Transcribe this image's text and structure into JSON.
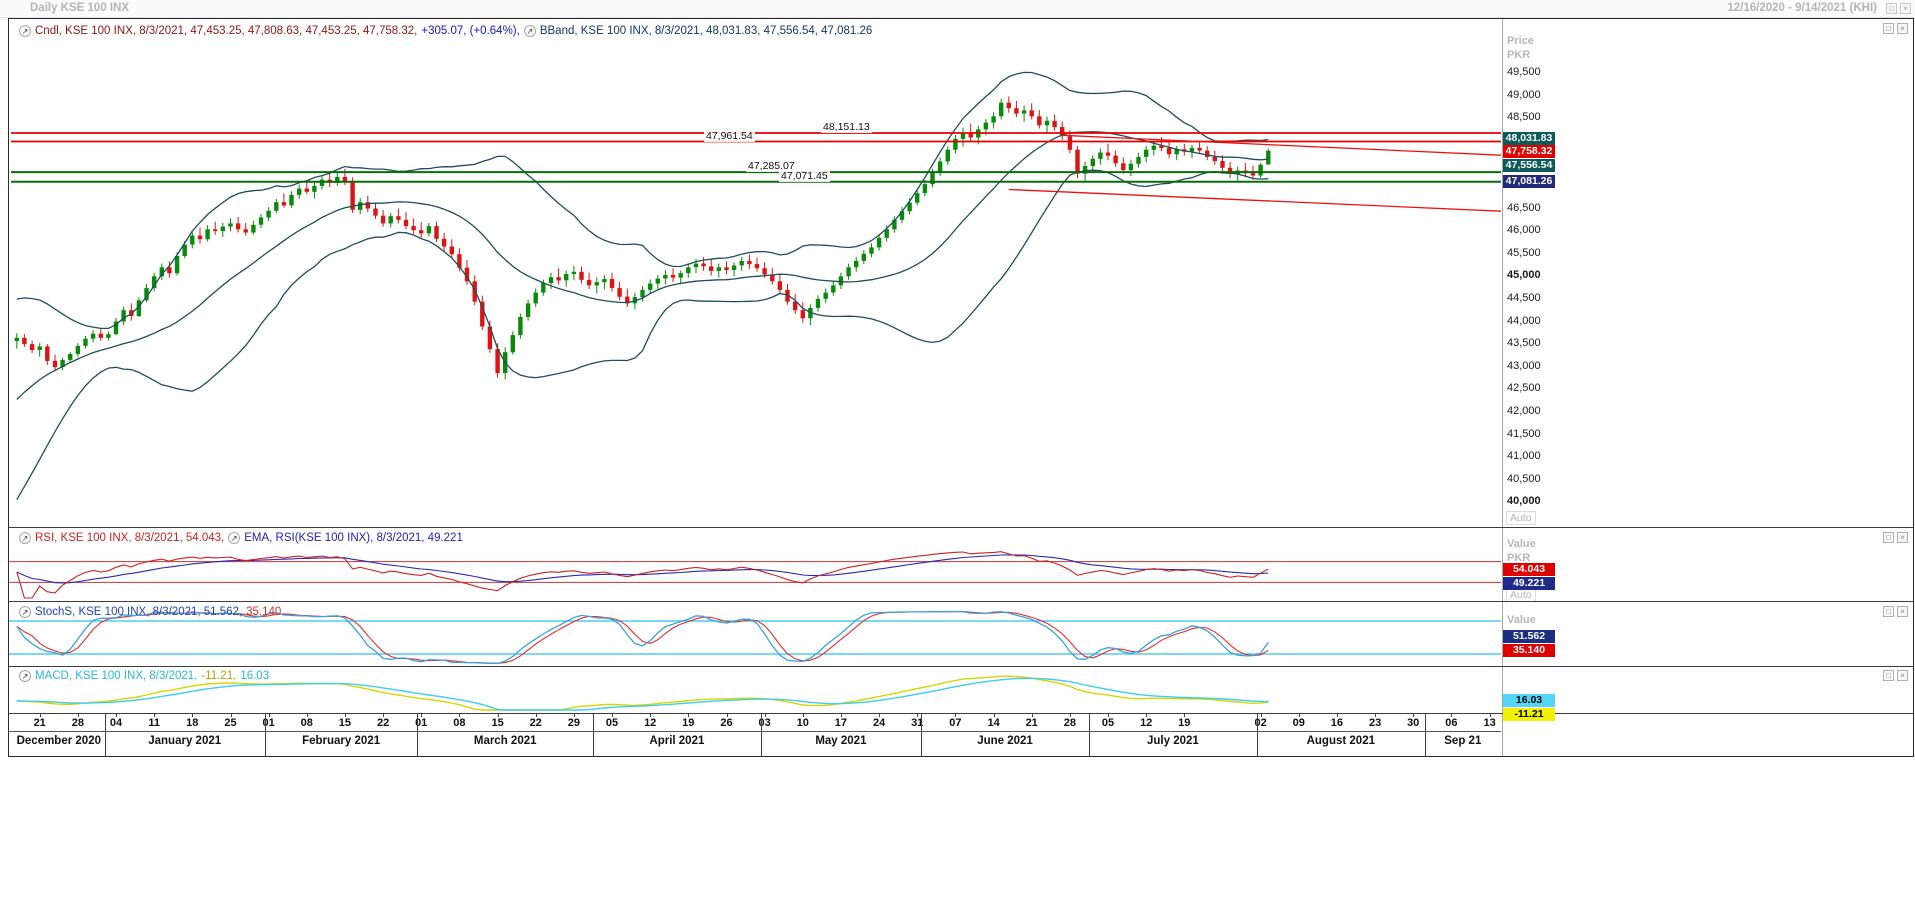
{
  "titlebar": {
    "title": "Daily KSE 100 INX",
    "date_range": "12/16/2020 - 9/14/2021 (KHI)"
  },
  "icons": {
    "legend_expand": "↗",
    "maximize": "□",
    "close": "×"
  },
  "colors": {
    "up": "#0a8a0a",
    "down": "#dc1414",
    "bband": "#1e4f5c",
    "hline_red": "#e40000",
    "hline_green": "#0b6b0b",
    "trend": "#ee1111",
    "rsi": "#cc2222",
    "rsi_ema": "#2a2ab4",
    "rsi_hline": "#cc3333",
    "stoch_k": "#3aa2dc",
    "stoch_d": "#e03030",
    "stoch_hline": "#2cc2ea",
    "macd": "#d6d600",
    "macd_signal": "#3fcdef"
  },
  "main_panel": {
    "legend_cndl": "Cndl, KSE 100 INX, 8/3/2021, 47,453.25, 47,808.63, 47,453.25, 47,758.32,",
    "legend_change": "+305.07, (+0.64%),",
    "legend_bband": "BBand, KSE 100 INX, 8/3/2021, 48,031.83, 47,556.54, 47,081.26",
    "axis_title_1": "Price",
    "axis_title_2": "PKR",
    "auto_label": "Auto",
    "y_ticks": [
      [
        "49,500",
        49500,
        0
      ],
      [
        "49,000",
        49000,
        0
      ],
      [
        "48,500",
        48500,
        0
      ],
      [
        "46,500",
        46500,
        0
      ],
      [
        "46,000",
        46000,
        0
      ],
      [
        "45,500",
        45500,
        0
      ],
      [
        "45,000",
        45000,
        1
      ],
      [
        "44,500",
        44500,
        0
      ],
      [
        "44,000",
        44000,
        0
      ],
      [
        "43,500",
        43500,
        0
      ],
      [
        "43,000",
        43000,
        0
      ],
      [
        "42,500",
        42500,
        0
      ],
      [
        "42,000",
        42000,
        0
      ],
      [
        "41,500",
        41500,
        0
      ],
      [
        "41,000",
        41000,
        0
      ],
      [
        "40,500",
        40500,
        0
      ],
      [
        "40,000",
        40000,
        1
      ]
    ],
    "badges": [
      [
        "48,031.83",
        48031.83,
        "#0d5a5a",
        "#ffffff"
      ],
      [
        "47,758.32",
        47758.32,
        "#e00000",
        "#ffffff"
      ],
      [
        "47,556.54",
        47556.54,
        "#0d5a5a",
        "#ffffff"
      ],
      [
        "47,081.26",
        47081.26,
        "#202a78",
        "#ffffff"
      ]
    ],
    "hlines": [
      [
        "48,151.13",
        48151.13,
        "red",
        812
      ],
      [
        "47,961.54",
        47961.54,
        "red",
        695
      ],
      [
        "47,285.07",
        47285.07,
        "green",
        737
      ],
      [
        "47,071.45",
        47071.45,
        "green",
        770
      ]
    ],
    "trendlines": [
      [
        137,
        48100,
        194.5,
        47660
      ],
      [
        130,
        46900,
        194.5,
        46420
      ]
    ]
  },
  "rsi_panel": {
    "legend_rsi": "RSI, KSE 100 INX, 8/3/2021, 54.043,",
    "legend_ema": "EMA, RSI(KSE 100 INX), 8/3/2021, 49.221",
    "axis_title_1": "Value",
    "axis_title_2": "PKR",
    "auto_label": "Auto",
    "hlines": [
      70,
      30
    ],
    "badges": [
      [
        "54.043",
        54.043,
        "#e00000",
        "#ffffff"
      ],
      [
        "49.221",
        49.221,
        "#202a8c",
        "#ffffff"
      ]
    ]
  },
  "stoch_panel": {
    "legend_main": "StochS, KSE 100 INX, 8/3/2021, 51.562,",
    "legend_d": "35.140",
    "axis_title_1": "Value",
    "hlines": [
      80,
      20
    ],
    "badges": [
      [
        "51.562",
        51.562,
        "#1c2f7e",
        "#ffffff"
      ],
      [
        "35.140",
        35.14,
        "#e00000",
        "#ffffff"
      ]
    ]
  },
  "macd_panel": {
    "legend_main": "MACD, KSE 100 INX, 8/3/2021,",
    "legend_macd_value": "-11.21,",
    "legend_signal_value": "16.03",
    "badges": [
      [
        "16.03",
        16.03,
        "#55d5f5",
        "#000000"
      ],
      [
        "-11.21",
        -11.21,
        "#f0f000",
        "#000000"
      ]
    ]
  },
  "xaxis": {
    "day_ticks": [
      [
        "21",
        3
      ],
      [
        "28",
        8
      ],
      [
        "04",
        13
      ],
      [
        "11",
        18
      ],
      [
        "18",
        23
      ],
      [
        "25",
        28
      ],
      [
        "01",
        33
      ],
      [
        "08",
        38
      ],
      [
        "15",
        43
      ],
      [
        "22",
        48
      ],
      [
        "01",
        53
      ],
      [
        "08",
        58
      ],
      [
        "15",
        63
      ],
      [
        "22",
        68
      ],
      [
        "29",
        73
      ],
      [
        "05",
        78
      ],
      [
        "12",
        83
      ],
      [
        "19",
        88
      ],
      [
        "26",
        93
      ],
      [
        "03",
        98
      ],
      [
        "10",
        103
      ],
      [
        "17",
        108
      ],
      [
        "24",
        113
      ],
      [
        "31",
        118
      ],
      [
        "07",
        123
      ],
      [
        "14",
        128
      ],
      [
        "21",
        133
      ],
      [
        "28",
        138
      ],
      [
        "05",
        143
      ],
      [
        "12",
        148
      ],
      [
        "19",
        153
      ],
      [
        "02",
        163
      ],
      [
        "09",
        168
      ],
      [
        "16",
        173
      ],
      [
        "23",
        178
      ],
      [
        "30",
        183
      ],
      [
        "06",
        188
      ],
      [
        "13",
        193
      ]
    ],
    "months": [
      [
        "December 2020",
        0,
        12
      ],
      [
        "January 2021",
        12,
        33
      ],
      [
        "February 2021",
        33,
        53
      ],
      [
        "March 2021",
        53,
        76
      ],
      [
        "April 2021",
        76,
        98
      ],
      [
        "May 2021",
        98,
        119
      ],
      [
        "June 2021",
        119,
        141
      ],
      [
        "July 2021",
        141,
        163
      ],
      [
        "August 2021",
        163,
        185
      ],
      [
        "Sep 21",
        185,
        195
      ]
    ]
  },
  "chart_data": {
    "type": "candlestick",
    "title": "Daily KSE 100 INX",
    "symbol": "KSE 100 INX",
    "period": "Daily",
    "xrange": "12/16/2020 - 9/14/2021",
    "ylim": [
      40000,
      49500
    ],
    "last_candle": {
      "date": "8/3/2021",
      "open": 47453.25,
      "high": 47808.63,
      "low": 47453.25,
      "close": 47758.32,
      "change": "+305.07",
      "change_pct": "+0.64%"
    },
    "levels": [
      48151.13,
      47961.54,
      47285.07,
      47071.45
    ],
    "bband": {
      "upper": 48031.83,
      "middle": 47556.54,
      "lower": 47081.26
    },
    "rsi": {
      "value": 54.043,
      "ema": 49.221,
      "hlines": [
        70,
        30
      ]
    },
    "stoch": {
      "k": 51.562,
      "d": 35.14,
      "hlines": [
        80,
        20
      ]
    },
    "macd": {
      "macd": -11.21,
      "signal": 16.03
    },
    "candles": [
      [
        43550,
        43720,
        43380,
        43620
      ],
      [
        43620,
        43700,
        43420,
        43480
      ],
      [
        43480,
        43560,
        43280,
        43350
      ],
      [
        43350,
        43500,
        43200,
        43430
      ],
      [
        43430,
        43480,
        43020,
        43110
      ],
      [
        43110,
        43250,
        42880,
        42970
      ],
      [
        42970,
        43180,
        42900,
        43130
      ],
      [
        43130,
        43310,
        43060,
        43260
      ],
      [
        43260,
        43500,
        43190,
        43440
      ],
      [
        43440,
        43660,
        43380,
        43600
      ],
      [
        43600,
        43790,
        43520,
        43710
      ],
      [
        43710,
        43830,
        43550,
        43620
      ],
      [
        43620,
        43760,
        43560,
        43700
      ],
      [
        43700,
        44060,
        43680,
        43980
      ],
      [
        43980,
        44310,
        43900,
        44230
      ],
      [
        44230,
        44380,
        44000,
        44100
      ],
      [
        44100,
        44510,
        44080,
        44450
      ],
      [
        44450,
        44810,
        44400,
        44720
      ],
      [
        44720,
        45060,
        44650,
        44980
      ],
      [
        44980,
        45260,
        44900,
        45180
      ],
      [
        45180,
        45310,
        44950,
        45050
      ],
      [
        45050,
        45510,
        45000,
        45430
      ],
      [
        45430,
        45760,
        45380,
        45680
      ],
      [
        45680,
        45960,
        45600,
        45880
      ],
      [
        45880,
        46060,
        45700,
        45800
      ],
      [
        45800,
        46110,
        45750,
        46020
      ],
      [
        46020,
        46190,
        45900,
        45980
      ],
      [
        45980,
        46160,
        45850,
        46080
      ],
      [
        46080,
        46260,
        45980,
        46150
      ],
      [
        46150,
        46290,
        45950,
        46020
      ],
      [
        46020,
        46160,
        45880,
        45950
      ],
      [
        45950,
        46210,
        45900,
        46120
      ],
      [
        46120,
        46360,
        46050,
        46280
      ],
      [
        46280,
        46510,
        46200,
        46430
      ],
      [
        46430,
        46690,
        46380,
        46620
      ],
      [
        46620,
        46810,
        46500,
        46550
      ],
      [
        46550,
        46860,
        46500,
        46780
      ],
      [
        46780,
        47010,
        46700,
        46920
      ],
      [
        46920,
        47110,
        46800,
        46850
      ],
      [
        46850,
        47060,
        46700,
        46980
      ],
      [
        46980,
        47210,
        46900,
        47120
      ],
      [
        47120,
        47290,
        46950,
        47050
      ],
      [
        47050,
        47260,
        46980,
        47180
      ],
      [
        47180,
        47360,
        47000,
        47090
      ],
      [
        47090,
        47170,
        46380,
        46450
      ],
      [
        46450,
        46710,
        46350,
        46620
      ],
      [
        46620,
        46760,
        46400,
        46480
      ],
      [
        46480,
        46610,
        46250,
        46320
      ],
      [
        46320,
        46450,
        46080,
        46150
      ],
      [
        46150,
        46380,
        46060,
        46310
      ],
      [
        46310,
        46480,
        46150,
        46230
      ],
      [
        46230,
        46400,
        46020,
        46090
      ],
      [
        46090,
        46260,
        45920,
        46000
      ],
      [
        46000,
        46180,
        45830,
        45930
      ],
      [
        45930,
        46160,
        45860,
        46090
      ],
      [
        46090,
        46190,
        45740,
        45810
      ],
      [
        45810,
        45940,
        45540,
        45640
      ],
      [
        45640,
        45800,
        45390,
        45470
      ],
      [
        45470,
        45600,
        45090,
        45170
      ],
      [
        45170,
        45340,
        44790,
        44870
      ],
      [
        44870,
        45000,
        44340,
        44420
      ],
      [
        44420,
        44550,
        43790,
        43870
      ],
      [
        43870,
        44000,
        43290,
        43370
      ],
      [
        43370,
        43500,
        42740,
        42840
      ],
      [
        42840,
        43410,
        42700,
        43300
      ],
      [
        43300,
        43760,
        43250,
        43680
      ],
      [
        43680,
        44160,
        43600,
        44080
      ],
      [
        44080,
        44460,
        44000,
        44380
      ],
      [
        44380,
        44710,
        44300,
        44620
      ],
      [
        44620,
        44910,
        44550,
        44830
      ],
      [
        44830,
        45060,
        44700,
        44960
      ],
      [
        44960,
        45160,
        44800,
        44890
      ],
      [
        44890,
        45110,
        44750,
        45030
      ],
      [
        45030,
        45210,
        44900,
        45080
      ],
      [
        45080,
        45190,
        44820,
        44900
      ],
      [
        44900,
        45060,
        44700,
        44780
      ],
      [
        44780,
        44960,
        44600,
        44850
      ],
      [
        44850,
        45010,
        44700,
        44920
      ],
      [
        44920,
        45060,
        44650,
        44720
      ],
      [
        44720,
        44860,
        44450,
        44530
      ],
      [
        44530,
        44710,
        44300,
        44380
      ],
      [
        44380,
        44610,
        44250,
        44520
      ],
      [
        44520,
        44760,
        44420,
        44680
      ],
      [
        44680,
        44910,
        44600,
        44820
      ],
      [
        44820,
        45010,
        44700,
        44930
      ],
      [
        44930,
        45110,
        44800,
        45010
      ],
      [
        45010,
        45160,
        44850,
        44950
      ],
      [
        44950,
        45110,
        44800,
        45050
      ],
      [
        45050,
        45260,
        44950,
        45180
      ],
      [
        45180,
        45360,
        45050,
        45260
      ],
      [
        45260,
        45410,
        45100,
        45200
      ],
      [
        45200,
        45360,
        45000,
        45100
      ],
      [
        45100,
        45260,
        44950,
        45180
      ],
      [
        45180,
        45310,
        45020,
        45120
      ],
      [
        45120,
        45290,
        44980,
        45220
      ],
      [
        45220,
        45410,
        45100,
        45320
      ],
      [
        45320,
        45460,
        45150,
        45250
      ],
      [
        45250,
        45390,
        45080,
        45160
      ],
      [
        45160,
        45290,
        44950,
        45020
      ],
      [
        45020,
        45160,
        44800,
        44870
      ],
      [
        44870,
        45010,
        44600,
        44680
      ],
      [
        44680,
        44810,
        44350,
        44420
      ],
      [
        44420,
        44590,
        44150,
        44230
      ],
      [
        44230,
        44410,
        43950,
        44050
      ],
      [
        44050,
        44360,
        43900,
        44280
      ],
      [
        44280,
        44560,
        44200,
        44480
      ],
      [
        44480,
        44710,
        44380,
        44620
      ],
      [
        44620,
        44860,
        44550,
        44780
      ],
      [
        44780,
        45060,
        44700,
        44980
      ],
      [
        44980,
        45260,
        44900,
        45180
      ],
      [
        45180,
        45410,
        45080,
        45320
      ],
      [
        45320,
        45560,
        45250,
        45480
      ],
      [
        45480,
        45710,
        45400,
        45620
      ],
      [
        45620,
        45910,
        45550,
        45830
      ],
      [
        45830,
        46110,
        45750,
        46020
      ],
      [
        46020,
        46310,
        45950,
        46230
      ],
      [
        46230,
        46510,
        46150,
        46420
      ],
      [
        46420,
        46710,
        46350,
        46610
      ],
      [
        46610,
        46910,
        46550,
        46820
      ],
      [
        46820,
        47110,
        46750,
        47020
      ],
      [
        47020,
        47360,
        46950,
        47280
      ],
      [
        47280,
        47610,
        47200,
        47520
      ],
      [
        47520,
        47860,
        47450,
        47780
      ],
      [
        47780,
        48110,
        47700,
        48020
      ],
      [
        48020,
        48260,
        47850,
        48150
      ],
      [
        48150,
        48360,
        47950,
        48050
      ],
      [
        48050,
        48310,
        47900,
        48230
      ],
      [
        48230,
        48460,
        48100,
        48380
      ],
      [
        48380,
        48610,
        48250,
        48520
      ],
      [
        48520,
        48910,
        48450,
        48820
      ],
      [
        48820,
        48960,
        48600,
        48700
      ],
      [
        48700,
        48860,
        48500,
        48580
      ],
      [
        48580,
        48760,
        48400,
        48650
      ],
      [
        48650,
        48810,
        48450,
        48520
      ],
      [
        48520,
        48660,
        48250,
        48320
      ],
      [
        48320,
        48510,
        48150,
        48420
      ],
      [
        48420,
        48560,
        48200,
        48280
      ],
      [
        48280,
        48410,
        48000,
        48080
      ],
      [
        48080,
        48210,
        47700,
        47780
      ],
      [
        47780,
        47860,
        47150,
        47250
      ],
      [
        47250,
        47510,
        47050,
        47420
      ],
      [
        47420,
        47660,
        47300,
        47580
      ],
      [
        47580,
        47810,
        47450,
        47720
      ],
      [
        47720,
        47910,
        47550,
        47650
      ],
      [
        47650,
        47760,
        47400,
        47480
      ],
      [
        47480,
        47610,
        47250,
        47330
      ],
      [
        47330,
        47560,
        47200,
        47470
      ],
      [
        47470,
        47710,
        47380,
        47620
      ],
      [
        47620,
        47860,
        47500,
        47780
      ],
      [
        47780,
        47960,
        47650,
        47870
      ],
      [
        47870,
        48060,
        47750,
        47820
      ],
      [
        47820,
        47960,
        47600,
        47680
      ],
      [
        47680,
        47860,
        47550,
        47790
      ],
      [
        47790,
        47910,
        47650,
        47740
      ],
      [
        47740,
        47890,
        47600,
        47820
      ],
      [
        47820,
        47960,
        47700,
        47760
      ],
      [
        47760,
        47860,
        47550,
        47620
      ],
      [
        47620,
        47760,
        47450,
        47530
      ],
      [
        47530,
        47660,
        47300,
        47380
      ],
      [
        47380,
        47510,
        47150,
        47240
      ],
      [
        47240,
        47410,
        47100,
        47320
      ],
      [
        47320,
        47490,
        47180,
        47260
      ],
      [
        47260,
        47430,
        47120,
        47210
      ],
      [
        47210,
        47490,
        47160,
        47450
      ],
      [
        47453.25,
        47808.63,
        47453.25,
        47758.32
      ]
    ]
  }
}
